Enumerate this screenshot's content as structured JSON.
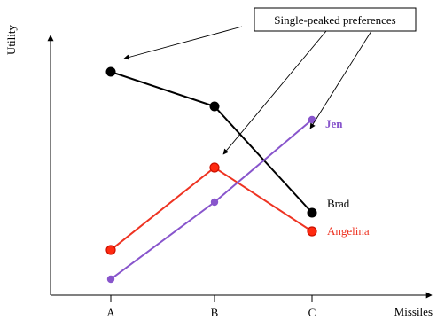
{
  "chart_data": {
    "type": "line",
    "xlabel": "Missiles",
    "ylabel": "Utility",
    "categories": [
      "A",
      "B",
      "C"
    ],
    "y_ticks": "none",
    "grid": false,
    "legend": "inline-labels",
    "series": [
      {
        "name": "Brad",
        "values": [
          8.4,
          7.1,
          3.1
        ],
        "color": "#000000",
        "marker": "large-dot"
      },
      {
        "name": "Angelina",
        "values": [
          1.7,
          4.8,
          2.4
        ],
        "color": "#ee3322",
        "marker": "ring-dot"
      },
      {
        "name": "Jen",
        "values": [
          0.6,
          3.5,
          6.6
        ],
        "color": "#8855cc",
        "marker": "small-dot"
      }
    ],
    "annotations": [
      {
        "text": "Single-peaked preferences",
        "targets": [
          "Brad@A",
          "Angelina@B",
          "Jen@C"
        ]
      }
    ]
  }
}
